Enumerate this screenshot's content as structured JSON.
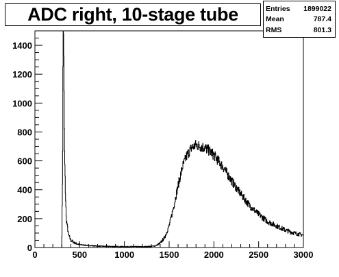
{
  "chart_data": {
    "type": "histogram",
    "title": "ADC right, 10-stage tube",
    "xlabel": "",
    "ylabel": "",
    "xlim": [
      0,
      3000
    ],
    "ylim": [
      0,
      1500
    ],
    "x_ticks": [
      0,
      500,
      1000,
      1500,
      2000,
      2500,
      3000
    ],
    "y_ticks": [
      0,
      200,
      400,
      600,
      800,
      1000,
      1200,
      1400
    ],
    "stats": {
      "rows": [
        {
          "label": "Entries",
          "value": "1899022"
        },
        {
          "label": "Mean",
          "value": "787.4"
        },
        {
          "label": "RMS",
          "value": "801.3"
        }
      ]
    },
    "series": [
      {
        "x": [
          300,
          310,
          315,
          320,
          325,
          330,
          340,
          350,
          375,
          400,
          450,
          500,
          600,
          700,
          800,
          900,
          1000,
          1100,
          1200,
          1300,
          1350,
          1400,
          1450,
          1500,
          1550,
          1600,
          1650,
          1700,
          1750,
          1800,
          1850,
          1900,
          1950,
          2000,
          2100,
          2200,
          2300,
          2400,
          2500,
          2600,
          2700,
          2800,
          2900,
          3000
        ],
        "y": [
          0,
          600,
          1500,
          1500,
          1100,
          700,
          400,
          200,
          90,
          50,
          30,
          20,
          14,
          10,
          8,
          7,
          6,
          6,
          5,
          8,
          12,
          30,
          70,
          150,
          280,
          430,
          560,
          640,
          690,
          710,
          700,
          690,
          670,
          640,
          560,
          460,
          370,
          290,
          230,
          180,
          150,
          120,
          100,
          85
        ]
      }
    ]
  }
}
